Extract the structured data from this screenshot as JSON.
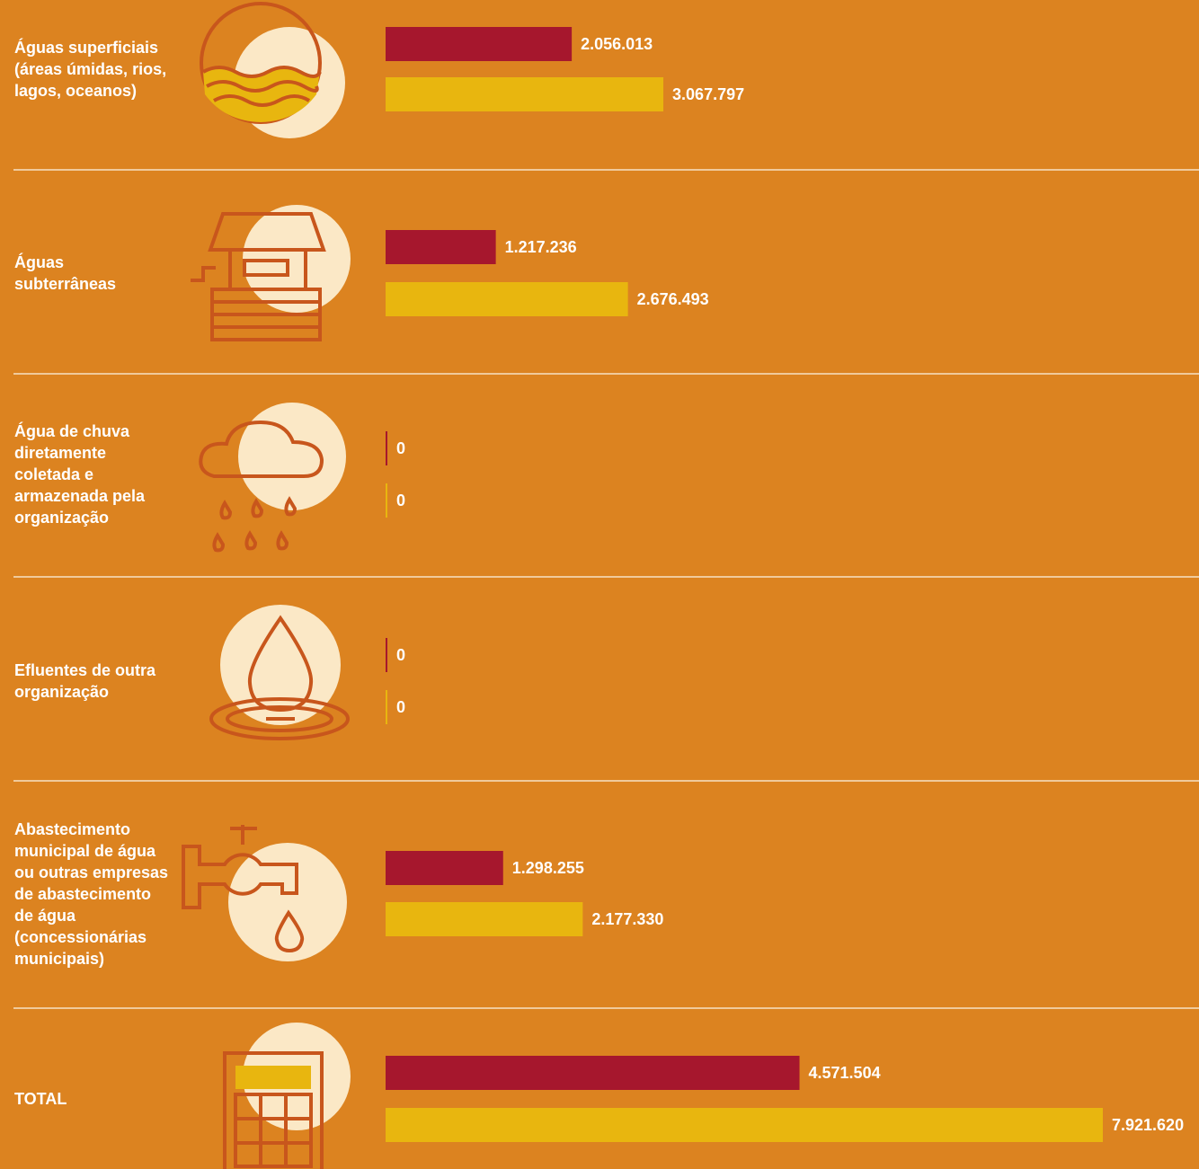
{
  "chart_data": {
    "type": "bar",
    "orientation": "horizontal",
    "categories": [
      "Águas superficiais (áreas úmidas, rios, lagos, oceanos)",
      "Águas subterrâneas",
      "Água de chuva diretamente coletada e armazenada pela organização",
      "Efluentes de outra organização",
      "Abastecimento municipal de água ou outras empresas de abastecimento de água (concessionárias municipais)",
      "TOTAL"
    ],
    "series": [
      {
        "color": "#a6172d",
        "values": [
          2056013,
          1217236,
          0,
          0,
          1298255,
          4571504
        ],
        "value_labels": [
          "2.056.013",
          "1.217.236",
          "0",
          "0",
          "1.298.255",
          "4.571.504"
        ]
      },
      {
        "color": "#e8b60f",
        "values": [
          3067797,
          2676493,
          0,
          0,
          2177330,
          7921620
        ],
        "value_labels": [
          "3.067.797",
          "2.676.493",
          "0",
          "0",
          "2.177.330",
          "7.921.620"
        ]
      }
    ]
  }
}
